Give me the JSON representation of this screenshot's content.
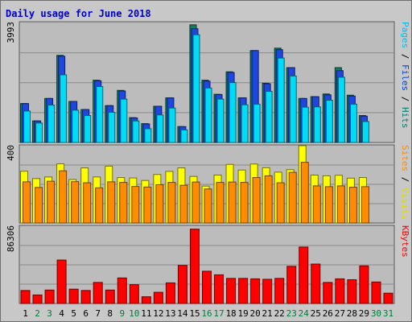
{
  "chart_data": {
    "type": "bar",
    "title": "Daily usage for June 2018",
    "categories": [
      "1",
      "2",
      "3",
      "4",
      "5",
      "6",
      "7",
      "8",
      "9",
      "10",
      "11",
      "12",
      "13",
      "14",
      "15",
      "16",
      "17",
      "18",
      "19",
      "20",
      "21",
      "22",
      "23",
      "24",
      "25",
      "26",
      "27",
      "28",
      "29",
      "30",
      "31"
    ],
    "weekend_categories": [
      "2",
      "3",
      "9",
      "10",
      "16",
      "17",
      "23",
      "24",
      "30",
      "31"
    ],
    "day_label_colors": {
      "weekday": "#000000",
      "weekend": "#007d3c"
    },
    "panels": [
      {
        "id": "hits-files-pages",
        "scale_max_label": "3993",
        "ylim": [
          0,
          3993
        ],
        "right_labels": [
          {
            "text": "Pages",
            "color": "#00bbee"
          },
          {
            "text": " / ",
            "color": "#000000"
          },
          {
            "text": "Files",
            "color": "#0044dd"
          },
          {
            "text": " / ",
            "color": "#000000"
          },
          {
            "text": "Hits",
            "color": "#00806a"
          }
        ],
        "series": [
          {
            "name": "Hits",
            "color": "#0f7e61",
            "values": [
              1300,
              720,
              1470,
              2910,
              1370,
              1100,
              2080,
              1230,
              1740,
              830,
              630,
              1210,
              1490,
              530,
              3930,
              2080,
              1610,
              2360,
              1490,
              3070,
              1980,
              3150,
              2500,
              1470,
              1530,
              1620,
              2500,
              1580,
              900,
              0,
              0
            ]
          },
          {
            "name": "Files",
            "color": "#1e46e0",
            "values": [
              1300,
              720,
              1470,
              2880,
              1370,
              1100,
              2060,
              1230,
              1720,
              820,
              620,
              1210,
              1490,
              530,
              3800,
              2050,
              1600,
              2340,
              1490,
              3070,
              1960,
              3100,
              2500,
              1470,
              1530,
              1590,
              2400,
              1550,
              880,
              0,
              0
            ]
          },
          {
            "name": "Pages",
            "color": "#00dcf8",
            "values": [
              1050,
              650,
              1250,
              2260,
              1080,
              900,
              1870,
              1010,
              1450,
              720,
              460,
              920,
              1150,
              420,
              3600,
              1820,
              1450,
              2000,
              1260,
              1280,
              1710,
              2820,
              2220,
              1180,
              1190,
              1410,
              2180,
              1280,
              700,
              0,
              0
            ]
          }
        ]
      },
      {
        "id": "visits-sites",
        "scale_max_label": "400",
        "ylim": [
          0,
          400
        ],
        "right_labels": [
          {
            "text": "Sites",
            "color": "#ff8c00"
          },
          {
            "text": " / ",
            "color": "#000000"
          },
          {
            "text": "Visits",
            "color": "#dddd00"
          }
        ],
        "series": [
          {
            "name": "Visits",
            "color": "#ffff00",
            "values": [
              268,
              230,
              238,
              306,
              225,
              285,
              238,
              294,
              235,
              233,
              220,
              251,
              267,
              285,
              241,
              191,
              248,
              303,
              274,
              305,
              286,
              263,
              276,
              400,
              248,
              244,
              247,
              232,
              235,
              0,
              0
            ]
          },
          {
            "name": "Sites",
            "color": "#ff8c00",
            "values": [
              213,
              184,
              216,
              270,
              214,
              208,
              182,
              213,
              210,
              189,
              186,
              198,
              210,
              195,
              212,
              176,
              210,
              212,
              210,
              235,
              244,
              208,
              262,
              314,
              192,
              188,
              192,
              185,
              188,
              0,
              0
            ]
          }
        ]
      },
      {
        "id": "kbytes",
        "scale_max_label": "86306",
        "ylim": [
          0,
          86306
        ],
        "right_labels": [
          {
            "text": "KBytes",
            "color": "#ff0000"
          }
        ],
        "series": [
          {
            "name": "KBytes",
            "color": "#ff0000",
            "values": [
              14500,
              9500,
              15000,
              48500,
              16000,
              14500,
              23500,
              15000,
              28500,
              21000,
              7500,
              12500,
              23000,
              42500,
              83000,
              36000,
              32000,
              28000,
              28000,
              27500,
              27000,
              28000,
              41500,
              63000,
              44000,
              23500,
              27500,
              26500,
              42000,
              24000,
              11500
            ]
          }
        ]
      }
    ]
  }
}
